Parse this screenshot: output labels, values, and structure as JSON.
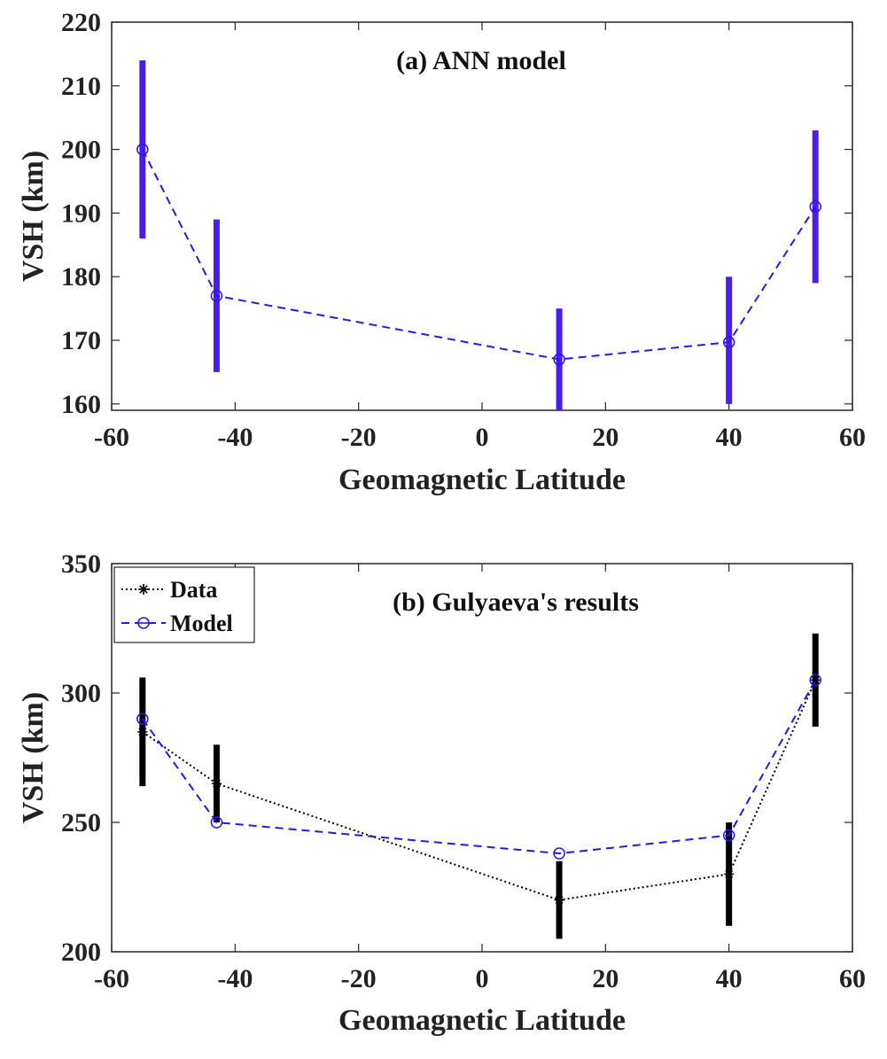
{
  "chart_data": [
    {
      "type": "line",
      "title": "(a) ANN model",
      "xlabel": "Geomagnetic Latitude",
      "ylabel": "VSH (km)",
      "xlim": [
        -60,
        60
      ],
      "ylim": [
        159,
        220
      ],
      "xticks": [
        -60,
        -40,
        -20,
        0,
        20,
        40,
        60
      ],
      "yticks": [
        160,
        170,
        180,
        190,
        200,
        210,
        220
      ],
      "grid": false,
      "x": [
        -55,
        -43,
        12.5,
        40,
        54
      ],
      "series": [
        {
          "key": "ann",
          "values": [
            200,
            177,
            167,
            169.7,
            191
          ],
          "color": "#2a16f0",
          "line_style": "dashed",
          "marker": "circle",
          "error_bars": [
            [
              186,
              214
            ],
            [
              165,
              189
            ],
            [
              159,
              175
            ],
            [
              160,
              180
            ],
            [
              179,
              203
            ]
          ],
          "error_color": "#4a1cf2"
        }
      ]
    },
    {
      "type": "line",
      "title": "(b) Gulyaeva's results",
      "xlabel": "Geomagnetic Latitude",
      "ylabel": "VSH (km)",
      "xlim": [
        -60,
        60
      ],
      "ylim": [
        200,
        350
      ],
      "xticks": [
        -60,
        -40,
        -20,
        0,
        20,
        40,
        60
      ],
      "yticks": [
        200,
        250,
        300,
        350
      ],
      "grid": false,
      "legend_position": "top-left",
      "x": [
        -55,
        -43,
        12.5,
        40,
        54
      ],
      "series": [
        {
          "name": "Data",
          "values": [
            285,
            265,
            220,
            230,
            305
          ],
          "color": "#000000",
          "line_style": "dotted",
          "marker": "asterisk",
          "error_bars": [
            [
              264,
              306
            ],
            [
              250,
              280
            ],
            [
              205,
              235
            ],
            [
              210,
              250
            ],
            [
              287,
              323
            ]
          ],
          "error_color": "#000000"
        },
        {
          "name": "Model",
          "values": [
            290,
            250,
            238,
            245,
            305
          ],
          "color": "#2a16f0",
          "line_style": "dashed",
          "marker": "circle"
        }
      ]
    }
  ]
}
